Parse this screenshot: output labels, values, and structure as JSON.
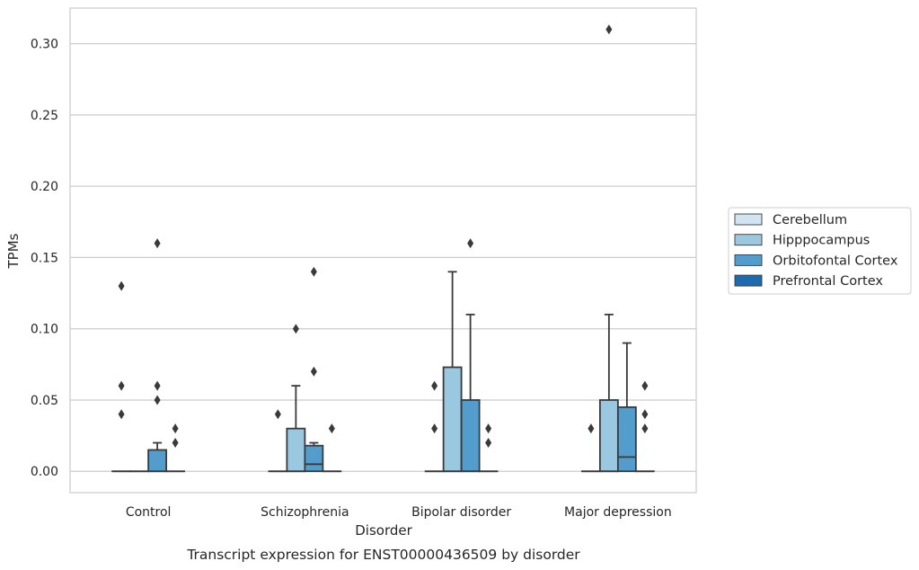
{
  "caption": "Transcript expression for ENST00000436509 by disorder",
  "chart_data": {
    "type": "boxplot",
    "xlabel": "Disorder",
    "ylabel": "TPMs",
    "ylim": [
      -0.015,
      0.325
    ],
    "yticks": [
      0.0,
      0.05,
      0.1,
      0.15,
      0.2,
      0.25,
      0.3
    ],
    "ytick_labels": [
      "0.00",
      "0.05",
      "0.10",
      "0.15",
      "0.20",
      "0.25",
      "0.30"
    ],
    "grid": "horizontal",
    "legend_position": "right",
    "categories": [
      "Control",
      "Schizophrenia",
      "Bipolar disorder",
      "Major depression"
    ],
    "series": [
      {
        "name": "Cerebellum",
        "color": "#d2e3f3",
        "boxes": [
          {
            "q1": 0,
            "median": 0,
            "q3": 0,
            "whisker_low": 0,
            "whisker_high": 0,
            "outliers": [
              0.04,
              0.06,
              0.13
            ]
          },
          {
            "q1": 0,
            "median": 0,
            "q3": 0,
            "whisker_low": 0,
            "whisker_high": 0,
            "outliers": [
              0.04
            ]
          },
          {
            "q1": 0,
            "median": 0,
            "q3": 0,
            "whisker_low": 0,
            "whisker_high": 0,
            "outliers": [
              0.03,
              0.06
            ]
          },
          {
            "q1": 0,
            "median": 0,
            "q3": 0,
            "whisker_low": 0,
            "whisker_high": 0,
            "outliers": [
              0.03
            ]
          }
        ]
      },
      {
        "name": "Hipppocampus",
        "color": "#9ac8e0",
        "boxes": [
          {
            "q1": 0,
            "median": 0,
            "q3": 0,
            "whisker_low": 0,
            "whisker_high": 0,
            "outliers": []
          },
          {
            "q1": 0,
            "median": 0,
            "q3": 0.03,
            "whisker_low": 0,
            "whisker_high": 0.06,
            "outliers": [
              0.1
            ]
          },
          {
            "q1": 0,
            "median": 0,
            "q3": 0.073,
            "whisker_low": 0,
            "whisker_high": 0.14,
            "outliers": []
          },
          {
            "q1": 0,
            "median": 0,
            "q3": 0.05,
            "whisker_low": 0,
            "whisker_high": 0.11,
            "outliers": [
              0.31
            ]
          }
        ]
      },
      {
        "name": "Orbitofontal Cortex",
        "color": "#529dcc",
        "boxes": [
          {
            "q1": 0,
            "median": 0,
            "q3": 0.015,
            "whisker_low": 0,
            "whisker_high": 0.02,
            "outliers": [
              0.05,
              0.06,
              0.16
            ]
          },
          {
            "q1": 0,
            "median": 0.005,
            "q3": 0.018,
            "whisker_low": 0,
            "whisker_high": 0.02,
            "outliers": [
              0.07,
              0.14
            ]
          },
          {
            "q1": 0,
            "median": 0,
            "q3": 0.05,
            "whisker_low": 0,
            "whisker_high": 0.11,
            "outliers": [
              0.16
            ]
          },
          {
            "q1": 0,
            "median": 0.01,
            "q3": 0.045,
            "whisker_low": 0,
            "whisker_high": 0.09,
            "outliers": []
          }
        ]
      },
      {
        "name": "Prefrontal Cortex",
        "color": "#1c6aaf",
        "boxes": [
          {
            "q1": 0,
            "median": 0,
            "q3": 0,
            "whisker_low": 0,
            "whisker_high": 0,
            "outliers": [
              0.02,
              0.03
            ]
          },
          {
            "q1": 0,
            "median": 0,
            "q3": 0,
            "whisker_low": 0,
            "whisker_high": 0,
            "outliers": [
              0.03
            ]
          },
          {
            "q1": 0,
            "median": 0,
            "q3": 0,
            "whisker_low": 0,
            "whisker_high": 0,
            "outliers": [
              0.02,
              0.03
            ]
          },
          {
            "q1": 0,
            "median": 0,
            "q3": 0,
            "whisker_low": 0,
            "whisker_high": 0,
            "outliers": [
              0.03,
              0.04,
              0.06
            ]
          }
        ]
      }
    ]
  }
}
